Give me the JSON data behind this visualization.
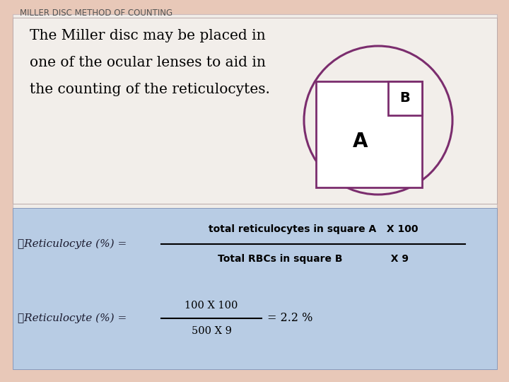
{
  "title": "MILLER DISC METHOD OF COUNTING",
  "bg_color": "#e8c8b8",
  "top_panel_color": "#f0ece8",
  "bottom_panel_color": "#b8cce4",
  "body_text_line1": "The Miller disc may be placed in",
  "body_text_line2": "one of the ocular lenses to aid in",
  "body_text_line3": "the counting of the reticulocytes.",
  "circle_color": "#7b2d6e",
  "rect_color": "#7b2d6e",
  "label_A": "A",
  "label_B": "B",
  "bullet": "❖"
}
